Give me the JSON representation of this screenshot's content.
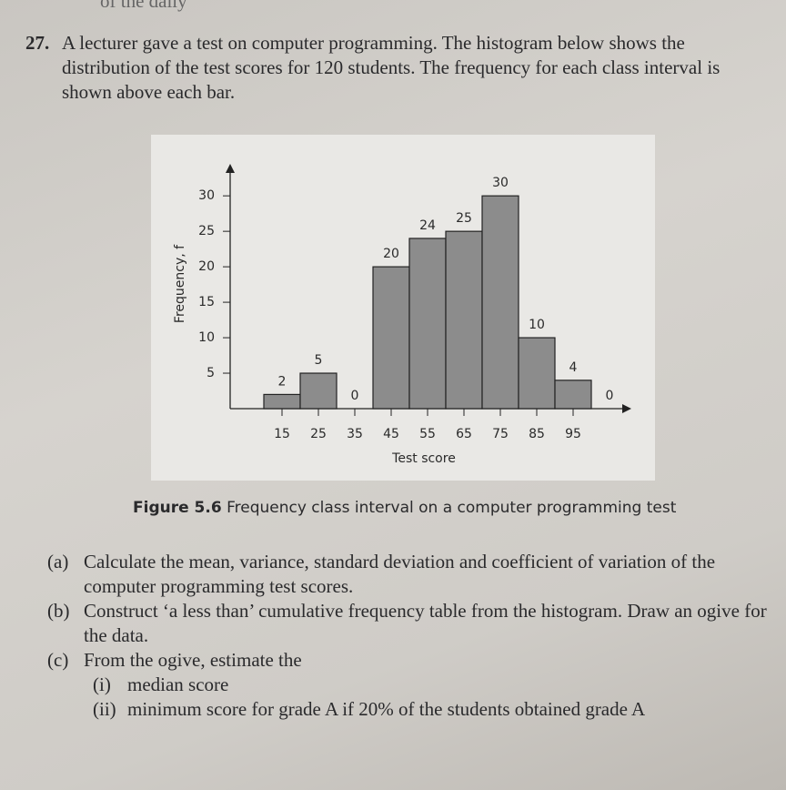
{
  "header_fragment": "of the daily",
  "question": {
    "number": "27.",
    "text": "A lecturer gave a test on computer programming. The histogram below shows the distribution of the test scores for 120 students. The frequency for each class interval is shown above each bar."
  },
  "chart_data": {
    "type": "histogram",
    "bins": [
      10,
      20,
      30,
      40,
      50,
      60,
      70,
      80,
      90,
      100,
      110
    ],
    "values": [
      2,
      5,
      0,
      20,
      24,
      25,
      30,
      10,
      4,
      0
    ],
    "color": "#8c8c8c",
    "xlabel": "Test score",
    "ylabel": "Frequency, f",
    "xlim": [
      0,
      110
    ],
    "xticks": [
      15,
      25,
      35,
      45,
      55,
      65,
      75,
      85,
      95
    ],
    "ylim": [
      0,
      34
    ],
    "yticks": [
      5,
      10,
      15,
      20,
      25,
      30
    ]
  },
  "figure_caption": {
    "label": "Figure 5.6",
    "text": "Frequency class interval on a computer programming test"
  },
  "parts": [
    {
      "label": "(a)",
      "text": "Calculate the mean, variance, standard deviation and coefficient of variation of the computer programming test scores."
    },
    {
      "label": "(b)",
      "text": "Construct ‘a less than’ cumulative frequency table from the histogram. Draw an ogive for the data."
    },
    {
      "label": "(c)",
      "text": "From the ogive, estimate the",
      "subparts": [
        {
          "label": "(i)",
          "text": "median score"
        },
        {
          "label": "(ii)",
          "text": "minimum score for grade A if 20% of the students obtained grade A"
        }
      ]
    }
  ]
}
